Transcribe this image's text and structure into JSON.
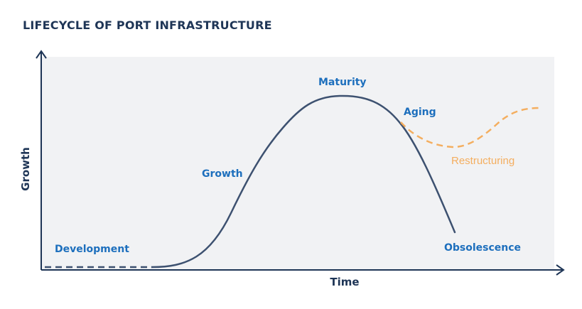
{
  "title": "LIFECYCLE OF PORT INFRASTRUCTURE",
  "axes": {
    "x_label": "Time",
    "y_label": "Growth"
  },
  "stages": {
    "development": "Development",
    "growth": "Growth",
    "maturity": "Maturity",
    "aging": "Aging",
    "obsolescence": "Obsolescence",
    "restructuring": "Restructuring"
  },
  "colors": {
    "main_curve": "#3d5170",
    "restructuring_curve": "#f4ae5f",
    "stage_label": "#1d6fbd",
    "axis": "#1e3556",
    "plot_background": "#f1f2f4"
  }
}
